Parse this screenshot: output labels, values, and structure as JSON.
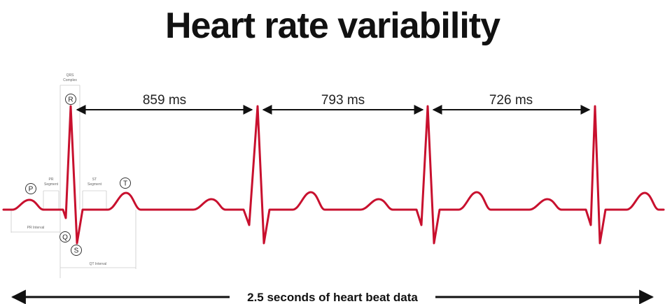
{
  "title": "Heart rate variability",
  "colors": {
    "ecg": "#c8102e",
    "text": "#111111",
    "guide": "#cccccc"
  },
  "intervals": [
    {
      "label": "859 ms",
      "value_ms": 859
    },
    {
      "label": "793 ms",
      "value_ms": 793
    },
    {
      "label": "726 ms",
      "value_ms": 726
    }
  ],
  "wave_labels": {
    "p": "P",
    "q": "Q",
    "r": "R",
    "s": "S",
    "t": "T"
  },
  "anatomy_labels": {
    "qrs_line1": "QRS",
    "qrs_line2": "Complex",
    "pr_segment_line1": "PR",
    "pr_segment_line2": "Segment",
    "st_segment_line1": "ST",
    "st_segment_line2": "Segment",
    "pr_interval": "PR Interval",
    "qt_interval": "QT Interval"
  },
  "footer": {
    "label": "2.5 seconds of heart beat data"
  }
}
